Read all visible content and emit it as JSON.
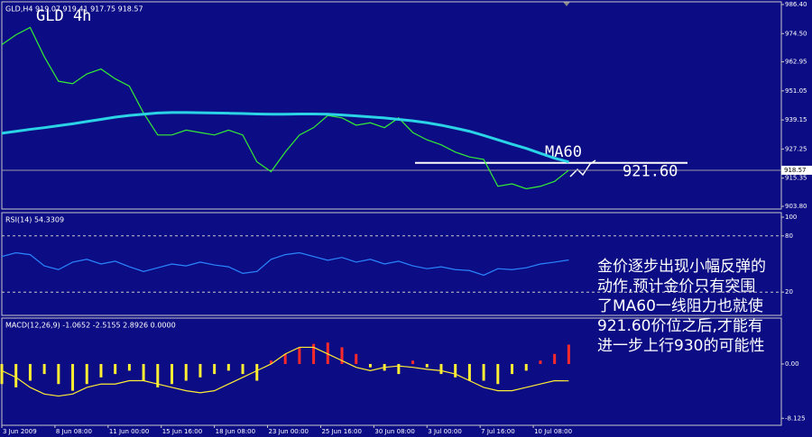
{
  "chart_data": [
    {
      "type": "line",
      "title": "GLD,H4 919.07 919.41 917.75 918.57",
      "subtitle": "GLD 4h",
      "xlim": [
        0,
        220
      ],
      "x": [
        0,
        4,
        8,
        12,
        16,
        20,
        24,
        28,
        32,
        36,
        40,
        44,
        48,
        52,
        56,
        60,
        64,
        68,
        72,
        76,
        80,
        84,
        88,
        92,
        96,
        100,
        104,
        108,
        112,
        116,
        120,
        124,
        128,
        132,
        136,
        140,
        144,
        148,
        152,
        156,
        160
      ],
      "ylim": [
        903.8,
        986.4
      ],
      "yticks": [
        {
          "value": 986.4,
          "label": "986.40"
        },
        {
          "value": 974.5,
          "label": "974.50"
        },
        962.95,
        951.05,
        939.15,
        927.25,
        915.35,
        {
          "value": 903.8,
          "label": "903.80"
        }
      ],
      "series": [
        {
          "color": "#33ee33",
          "values": [
            970,
            974,
            977,
            965,
            955,
            954,
            958,
            960,
            956,
            953,
            942,
            933,
            933,
            935,
            934,
            933,
            935,
            933,
            922,
            918,
            926,
            933,
            936,
            941,
            940,
            937,
            938,
            936,
            940,
            934,
            931,
            929,
            926,
            924,
            923,
            912,
            913,
            911,
            912,
            914,
            918.57
          ]
        },
        {
          "color": "#2ad4e6",
          "values": [
            933.7,
            934.5,
            935.3,
            936,
            936.8,
            937.6,
            938.5,
            939.4,
            940.3,
            941,
            941.5,
            942,
            942.2,
            942.2,
            942.1,
            942,
            941.9,
            941.8,
            941.6,
            941.5,
            941.5,
            941.6,
            941.6,
            941.5,
            941.2,
            940.8,
            940.4,
            940,
            939.4,
            938.8,
            938,
            937,
            935.8,
            934.5,
            932.8,
            931,
            929.2,
            927.5,
            925.5,
            923.5,
            922
          ]
        }
      ],
      "price_line": {
        "value": 918.57,
        "label": "918.57"
      },
      "resistance": {
        "value": 921.6,
        "label": "921.60"
      },
      "annotations": [
        "MA60",
        "金价逐步出现小幅反弹的",
        "动作,预计金价只有突围",
        "了MA60一线阻力也就使",
        "921.60价位之后,才能有",
        "进一步上行930的可能性"
      ]
    },
    {
      "type": "line",
      "title": "RSI(14) 54.3309",
      "xlim": [
        0,
        220
      ],
      "x": [
        0,
        4,
        8,
        12,
        16,
        20,
        24,
        28,
        32,
        36,
        40,
        44,
        48,
        52,
        56,
        60,
        64,
        68,
        72,
        76,
        80,
        84,
        88,
        92,
        96,
        100,
        104,
        108,
        112,
        116,
        120,
        124,
        128,
        132,
        136,
        140,
        144,
        148,
        152,
        156,
        160
      ],
      "ylim": [
        0,
        100
      ],
      "yticks": [
        20,
        80,
        100
      ],
      "levels": [
        80,
        20
      ],
      "series": [
        {
          "color": "#2a86ff",
          "values": [
            58,
            62,
            60,
            48,
            44,
            52,
            55,
            50,
            53,
            47,
            42,
            46,
            50,
            48,
            52,
            49,
            47,
            40,
            42,
            55,
            60,
            62,
            58,
            54,
            57,
            52,
            55,
            50,
            53,
            48,
            45,
            47,
            44,
            43,
            38,
            45,
            44,
            46,
            50,
            52,
            54.33
          ]
        }
      ]
    },
    {
      "type": "bar",
      "title": "MACD(12,26,9) -1.0652 -2.5155 2.8926 0.0000",
      "xlim": [
        0,
        220
      ],
      "x": [
        0,
        4,
        8,
        12,
        16,
        20,
        24,
        28,
        32,
        36,
        40,
        44,
        48,
        52,
        56,
        60,
        64,
        68,
        72,
        76,
        80,
        84,
        88,
        92,
        96,
        100,
        104,
        108,
        112,
        116,
        120,
        124,
        128,
        132,
        136,
        140,
        144,
        148,
        152,
        156,
        160
      ],
      "ylim": [
        -8.9,
        6.6
      ],
      "yticks": [
        {
          "value": 0,
          "label": "0.00"
        },
        -8.125
      ],
      "up_color": "#ff2a2a",
      "down_color": "#ffee33",
      "xticks": [
        {
          "value": 0,
          "label": "3 Jun 2009"
        },
        {
          "value": 15,
          "label": "8 Jun 08:00"
        },
        {
          "value": 30,
          "label": "11 Jun 00:00"
        },
        {
          "value": 45,
          "label": "15 Jun 16:00"
        },
        {
          "value": 60,
          "label": "18 Jun 08:00"
        },
        {
          "value": 75,
          "label": "23 Jun 00:00"
        },
        {
          "value": 90,
          "label": "25 Jun 16:00"
        },
        {
          "value": 105,
          "label": "30 Jun 08:00"
        },
        {
          "value": 120,
          "label": "3 Jul 00:00"
        },
        {
          "value": 135,
          "label": "7 Jul 16:00"
        },
        {
          "value": 150,
          "label": "10 Jul 08:00"
        }
      ],
      "series": [
        {
          "type": "bar",
          "values": [
            -3,
            -3.5,
            -2.5,
            -1.5,
            -3,
            -4,
            -3,
            -2,
            -1.5,
            -1,
            -2.5,
            -3.5,
            -3,
            -2.5,
            -2,
            -1.5,
            -1,
            -1.5,
            -2.5,
            0.5,
            1.5,
            2.5,
            3,
            3.2,
            2.5,
            1.5,
            -0.5,
            -1,
            -1.5,
            0.5,
            -0.5,
            -1.5,
            -2,
            -2.5,
            -2.5,
            -3,
            -1.5,
            -1,
            0.5,
            1.5,
            2.89
          ]
        },
        {
          "type": "line",
          "color": "#ffee33",
          "values": [
            -1,
            -2,
            -3.5,
            -4.5,
            -4.8,
            -4.5,
            -3.5,
            -3,
            -3,
            -2.5,
            -2.5,
            -3,
            -3.5,
            -4,
            -4.3,
            -4,
            -3,
            -2,
            -1,
            0,
            1.5,
            2.5,
            2.5,
            1.5,
            0.5,
            -0.5,
            -1,
            -0.5,
            -0.3,
            -0.5,
            -0.8,
            -1,
            -1.5,
            -2.5,
            -3.5,
            -4,
            -4,
            -3.5,
            -3,
            -2.5,
            -2.52
          ]
        }
      ]
    }
  ]
}
